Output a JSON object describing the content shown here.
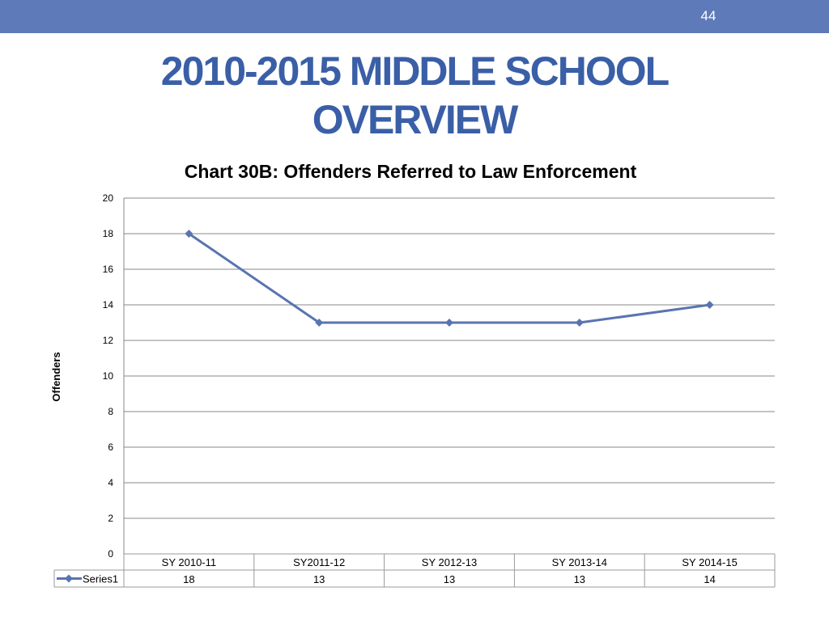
{
  "slide": {
    "page_number": "44",
    "title": "2010-2015 MIDDLE SCHOOL OVERVIEW"
  },
  "colors": {
    "band": "#5f7ab8",
    "title": "#3a5fa7",
    "series": "#5a74b0",
    "grid": "#8a8a8a"
  },
  "chart_data": {
    "type": "line",
    "title": "Chart 30B: Offenders Referred to Law Enforcement",
    "xlabel": "",
    "ylabel": "Offenders",
    "categories": [
      "SY 2010-11",
      "SY2011-12",
      "SY 2012-13",
      "SY 2013-14",
      "SY 2014-15"
    ],
    "series": [
      {
        "name": "Series1",
        "values": [
          18,
          13,
          13,
          13,
          14
        ],
        "marker": "diamond"
      }
    ],
    "ylim": [
      0,
      20
    ],
    "yticks": [
      0,
      2,
      4,
      6,
      8,
      10,
      12,
      14,
      16,
      18,
      20
    ],
    "grid": true,
    "data_table": true,
    "legend": "in data table"
  }
}
